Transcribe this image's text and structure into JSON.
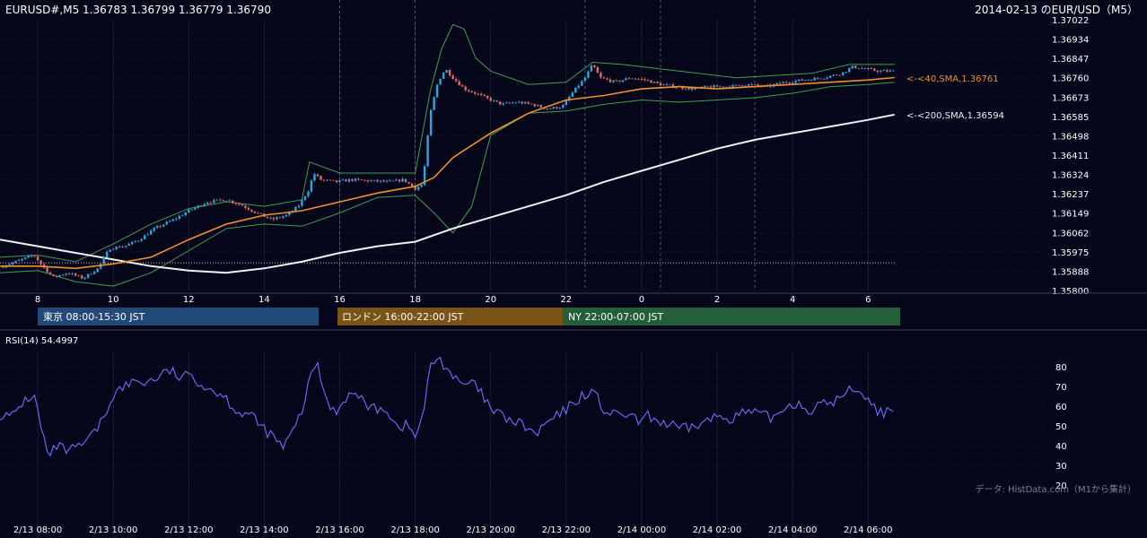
{
  "header": {
    "ohlc_label": "EURUSD#,M5 1.36783 1.36799 1.36779 1.36790",
    "date_title": "2014-02-13 のEUR/USD（M5）"
  },
  "colors": {
    "background": "#06061a",
    "grid": "#2a2d40",
    "candle_up": "#29a8e0",
    "candle_down": "#e06a6a",
    "sma40": "#f0902a",
    "sma200": "#f0f0f0",
    "bollinger": "#3f9f55",
    "rsi": "#6b72ff",
    "tokyo": "#214a78",
    "london": "#7a5416",
    "ny": "#245e3b"
  },
  "sessions": [
    {
      "label": "東京 08:00-15:30 JST",
      "color": "#214a78"
    },
    {
      "label": "ロンドン 16:00-22:00 JST",
      "color": "#7a5416"
    },
    {
      "label": "NY 22:00-07:00 JST",
      "color": "#245e3b"
    }
  ],
  "sma_labels": {
    "sma40": "<-<40,SMA,1.36761",
    "sma200": "<-<200,SMA,1.36594"
  },
  "rsi_label": "RSI(14) 54.4997",
  "credit": "データ: HistData.com（M1から集計）",
  "chart_data": [
    {
      "type": "candlestick",
      "title": "2014-02-13 のEUR/USD（M5）",
      "x_tick_labels": [
        "8",
        "10",
        "12",
        "14",
        "16",
        "18",
        "20",
        "22",
        "0",
        "2",
        "4",
        "6"
      ],
      "x_tick_hours": [
        8,
        10,
        12,
        14,
        16,
        18,
        20,
        22,
        24,
        26,
        28,
        30
      ],
      "x_range_hours": [
        7,
        30.85
      ],
      "y_tick_labels": [
        "1.37022",
        "1.36934",
        "1.36847",
        "1.36760",
        "1.36673",
        "1.36585",
        "1.36498",
        "1.36411",
        "1.36324",
        "1.36237",
        "1.36149",
        "1.36062",
        "1.35975",
        "1.35888",
        "1.35800"
      ],
      "ylim": [
        1.358,
        1.37022
      ],
      "last_ohlc": {
        "open": 1.36783,
        "high": 1.36799,
        "low": 1.36779,
        "close": 1.3679
      },
      "close_path": [
        [
          7.0,
          1.35905
        ],
        [
          7.5,
          1.35935
        ],
        [
          7.9,
          1.3596
        ],
        [
          8.1,
          1.35915
        ],
        [
          8.4,
          1.3586
        ],
        [
          8.8,
          1.3588
        ],
        [
          9.2,
          1.35855
        ],
        [
          9.6,
          1.359
        ],
        [
          9.9,
          1.3599
        ],
        [
          10.3,
          1.36
        ],
        [
          10.7,
          1.3603
        ],
        [
          11.1,
          1.3608
        ],
        [
          11.6,
          1.3612
        ],
        [
          12.0,
          1.3616
        ],
        [
          12.5,
          1.362
        ],
        [
          13.0,
          1.3621
        ],
        [
          13.4,
          1.36185
        ],
        [
          13.8,
          1.3615
        ],
        [
          14.2,
          1.3612
        ],
        [
          14.6,
          1.3614
        ],
        [
          14.9,
          1.3618
        ],
        [
          15.2,
          1.3626
        ],
        [
          15.3,
          1.3633
        ],
        [
          15.5,
          1.363
        ],
        [
          15.9,
          1.3629
        ],
        [
          16.3,
          1.363
        ],
        [
          16.8,
          1.36295
        ],
        [
          17.3,
          1.3629
        ],
        [
          17.7,
          1.363
        ],
        [
          18.0,
          1.3626
        ],
        [
          18.2,
          1.3628
        ],
        [
          18.4,
          1.366
        ],
        [
          18.6,
          1.3674
        ],
        [
          18.8,
          1.368
        ],
        [
          19.0,
          1.3676
        ],
        [
          19.3,
          1.3671
        ],
        [
          19.6,
          1.3669
        ],
        [
          20.0,
          1.3666
        ],
        [
          20.3,
          1.3664
        ],
        [
          20.7,
          1.3665
        ],
        [
          21.1,
          1.3664
        ],
        [
          21.5,
          1.3662
        ],
        [
          21.9,
          1.3663
        ],
        [
          22.2,
          1.367
        ],
        [
          22.5,
          1.3676
        ],
        [
          22.7,
          1.3682
        ],
        [
          22.9,
          1.3676
        ],
        [
          23.3,
          1.3674
        ],
        [
          23.7,
          1.3676
        ],
        [
          24.1,
          1.3675
        ],
        [
          24.5,
          1.3673
        ],
        [
          24.9,
          1.3672
        ],
        [
          25.3,
          1.3671
        ],
        [
          25.8,
          1.3672
        ],
        [
          26.3,
          1.3672
        ],
        [
          26.8,
          1.3673
        ],
        [
          27.3,
          1.3672
        ],
        [
          27.8,
          1.3674
        ],
        [
          28.3,
          1.3675
        ],
        [
          28.8,
          1.3676
        ],
        [
          29.3,
          1.3678
        ],
        [
          29.6,
          1.3681
        ],
        [
          29.9,
          1.368
        ],
        [
          30.3,
          1.3679
        ],
        [
          30.7,
          1.3679
        ]
      ],
      "sma40_path": [
        [
          7.0,
          1.3591
        ],
        [
          8.0,
          1.3591
        ],
        [
          9.0,
          1.359
        ],
        [
          10.0,
          1.3592
        ],
        [
          11.0,
          1.3595
        ],
        [
          12.0,
          1.3603
        ],
        [
          13.0,
          1.361
        ],
        [
          14.0,
          1.3614
        ],
        [
          15.0,
          1.3616
        ],
        [
          16.0,
          1.362
        ],
        [
          17.0,
          1.3624
        ],
        [
          18.0,
          1.3627
        ],
        [
          18.5,
          1.3631
        ],
        [
          19.0,
          1.364
        ],
        [
          20.0,
          1.3651
        ],
        [
          21.0,
          1.366
        ],
        [
          21.5,
          1.3663
        ],
        [
          22.0,
          1.3666
        ],
        [
          23.0,
          1.3668
        ],
        [
          24.0,
          1.3671
        ],
        [
          25.0,
          1.3672
        ],
        [
          26.0,
          1.3671
        ],
        [
          27.0,
          1.3672
        ],
        [
          28.0,
          1.3673
        ],
        [
          29.0,
          1.3674
        ],
        [
          30.0,
          1.3675
        ],
        [
          30.7,
          1.36761
        ]
      ],
      "sma200_path": [
        [
          7.0,
          1.3603
        ],
        [
          8.0,
          1.36
        ],
        [
          9.0,
          1.3597
        ],
        [
          10.0,
          1.3594
        ],
        [
          11.0,
          1.3591
        ],
        [
          12.0,
          1.3589
        ],
        [
          13.0,
          1.3588
        ],
        [
          14.0,
          1.359
        ],
        [
          15.0,
          1.3593
        ],
        [
          16.0,
          1.3597
        ],
        [
          17.0,
          1.36
        ],
        [
          18.0,
          1.3602
        ],
        [
          19.0,
          1.3608
        ],
        [
          20.0,
          1.3613
        ],
        [
          21.0,
          1.3618
        ],
        [
          22.0,
          1.3623
        ],
        [
          23.0,
          1.3629
        ],
        [
          24.0,
          1.3634
        ],
        [
          25.0,
          1.3639
        ],
        [
          26.0,
          1.3644
        ],
        [
          27.0,
          1.3648
        ],
        [
          28.0,
          1.3651
        ],
        [
          29.0,
          1.3654
        ],
        [
          30.0,
          1.3657
        ],
        [
          30.7,
          1.36594
        ]
      ],
      "bollinger_upper": [
        [
          7.0,
          1.3595
        ],
        [
          8.0,
          1.3596
        ],
        [
          9.0,
          1.3593
        ],
        [
          10.0,
          1.3601
        ],
        [
          11.0,
          1.361
        ],
        [
          12.0,
          1.3617
        ],
        [
          13.0,
          1.362
        ],
        [
          14.0,
          1.3618
        ],
        [
          15.0,
          1.3621
        ],
        [
          15.2,
          1.3638
        ],
        [
          16.0,
          1.3633
        ],
        [
          17.0,
          1.3633
        ],
        [
          18.0,
          1.3633
        ],
        [
          18.4,
          1.367
        ],
        [
          18.7,
          1.3689
        ],
        [
          19.0,
          1.37
        ],
        [
          19.3,
          1.3698
        ],
        [
          19.6,
          1.3685
        ],
        [
          20.0,
          1.3679
        ],
        [
          21.0,
          1.3673
        ],
        [
          22.0,
          1.3674
        ],
        [
          22.7,
          1.3683
        ],
        [
          23.5,
          1.3682
        ],
        [
          24.5,
          1.368
        ],
        [
          25.5,
          1.3678
        ],
        [
          26.5,
          1.3676
        ],
        [
          27.5,
          1.3677
        ],
        [
          28.5,
          1.3678
        ],
        [
          29.5,
          1.3682
        ],
        [
          30.7,
          1.3682
        ]
      ],
      "bollinger_lower": [
        [
          7.0,
          1.3588
        ],
        [
          8.0,
          1.3589
        ],
        [
          9.0,
          1.3584
        ],
        [
          10.0,
          1.3582
        ],
        [
          11.0,
          1.3588
        ],
        [
          12.0,
          1.3598
        ],
        [
          13.0,
          1.3608
        ],
        [
          14.0,
          1.361
        ],
        [
          15.0,
          1.3609
        ],
        [
          16.0,
          1.3615
        ],
        [
          17.0,
          1.3622
        ],
        [
          18.0,
          1.3623
        ],
        [
          18.5,
          1.3615
        ],
        [
          19.0,
          1.3606
        ],
        [
          19.5,
          1.3618
        ],
        [
          20.0,
          1.365
        ],
        [
          21.0,
          1.366
        ],
        [
          22.0,
          1.3661
        ],
        [
          23.0,
          1.3664
        ],
        [
          24.0,
          1.3666
        ],
        [
          25.0,
          1.3665
        ],
        [
          26.0,
          1.3666
        ],
        [
          27.0,
          1.3667
        ],
        [
          28.0,
          1.3669
        ],
        [
          29.0,
          1.3672
        ],
        [
          30.0,
          1.3673
        ],
        [
          30.7,
          1.3674
        ]
      ],
      "reference_level": 1.35925,
      "dashed_vertical_lines_hours": [
        16,
        18,
        22.5,
        24.5,
        27
      ]
    },
    {
      "type": "line",
      "title": "RSI(14) 54.4997",
      "ylim": [
        20,
        85
      ],
      "y_tick_labels": [
        "80",
        "70",
        "60",
        "50",
        "40",
        "30",
        "20"
      ],
      "y_ticks": [
        80,
        70,
        60,
        50,
        40,
        30,
        20
      ],
      "x_tick_labels": [
        "2/13 08:00",
        "2/13 10:00",
        "2/13 12:00",
        "2/13 14:00",
        "2/13 16:00",
        "2/13 18:00",
        "2/13 20:00",
        "2/13 22:00",
        "2/14 00:00",
        "2/14 02:00",
        "2/14 04:00",
        "2/14 06:00"
      ],
      "x_tick_hours": [
        8,
        10,
        12,
        14,
        16,
        18,
        20,
        22,
        24,
        26,
        28,
        30
      ],
      "series": [
        {
          "values": [
            [
              7.0,
              56
            ],
            [
              7.3,
              54
            ],
            [
              7.6,
              62
            ],
            [
              7.9,
              66
            ],
            [
              8.1,
              48
            ],
            [
              8.3,
              33
            ],
            [
              8.5,
              40
            ],
            [
              8.8,
              37
            ],
            [
              9.1,
              39
            ],
            [
              9.4,
              44
            ],
            [
              9.7,
              52
            ],
            [
              10.0,
              66
            ],
            [
              10.3,
              70
            ],
            [
              10.6,
              73
            ],
            [
              10.9,
              72
            ],
            [
              11.2,
              75
            ],
            [
              11.5,
              78
            ],
            [
              11.8,
              74
            ],
            [
              12.1,
              76
            ],
            [
              12.4,
              70
            ],
            [
              12.7,
              68
            ],
            [
              13.0,
              64
            ],
            [
              13.3,
              57
            ],
            [
              13.6,
              56
            ],
            [
              13.9,
              50
            ],
            [
              14.2,
              45
            ],
            [
              14.5,
              39
            ],
            [
              14.8,
              48
            ],
            [
              15.0,
              58
            ],
            [
              15.2,
              72
            ],
            [
              15.4,
              84
            ],
            [
              15.6,
              64
            ],
            [
              15.9,
              57
            ],
            [
              16.2,
              66
            ],
            [
              16.5,
              65
            ],
            [
              16.9,
              58
            ],
            [
              17.2,
              60
            ],
            [
              17.5,
              50
            ],
            [
              17.8,
              50
            ],
            [
              18.0,
              45
            ],
            [
              18.2,
              54
            ],
            [
              18.4,
              80
            ],
            [
              18.6,
              85
            ],
            [
              18.9,
              78
            ],
            [
              19.2,
              70
            ],
            [
              19.5,
              72
            ],
            [
              19.8,
              65
            ],
            [
              20.0,
              58
            ],
            [
              20.3,
              55
            ],
            [
              20.6,
              52
            ],
            [
              20.9,
              50
            ],
            [
              21.2,
              45
            ],
            [
              21.5,
              52
            ],
            [
              21.8,
              55
            ],
            [
              22.1,
              60
            ],
            [
              22.4,
              65
            ],
            [
              22.7,
              68
            ],
            [
              23.0,
              58
            ],
            [
              23.3,
              55
            ],
            [
              23.6,
              56
            ],
            [
              23.9,
              52
            ],
            [
              24.2,
              55
            ],
            [
              24.5,
              52
            ],
            [
              24.8,
              50
            ],
            [
              25.1,
              48
            ],
            [
              25.4,
              50
            ],
            [
              25.7,
              52
            ],
            [
              26.0,
              55
            ],
            [
              26.3,
              54
            ],
            [
              26.6,
              56
            ],
            [
              26.9,
              57
            ],
            [
              27.2,
              55
            ],
            [
              27.5,
              54
            ],
            [
              27.8,
              60
            ],
            [
              28.1,
              62
            ],
            [
              28.4,
              58
            ],
            [
              28.7,
              60
            ],
            [
              29.0,
              62
            ],
            [
              29.3,
              64
            ],
            [
              29.6,
              70
            ],
            [
              29.9,
              66
            ],
            [
              30.2,
              58
            ],
            [
              30.5,
              57
            ],
            [
              30.7,
              54
            ]
          ]
        }
      ]
    }
  ]
}
